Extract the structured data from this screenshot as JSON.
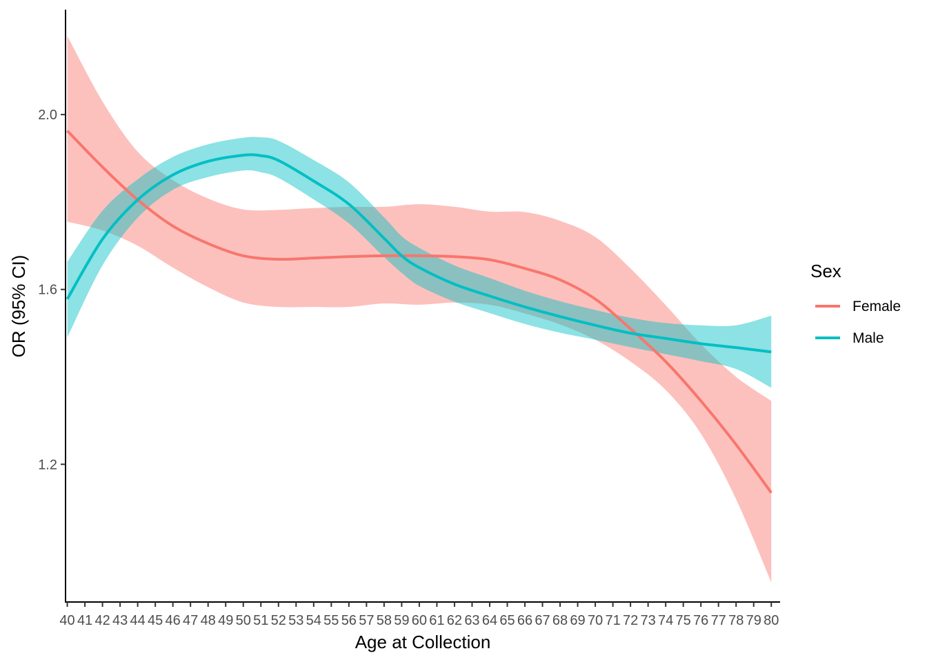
{
  "chart_data": {
    "type": "line",
    "title": "",
    "xlabel": "Age at Collection",
    "ylabel": "OR (95% CI)",
    "x": [
      40,
      41,
      42,
      43,
      44,
      45,
      46,
      47,
      48,
      49,
      50,
      51,
      52,
      53,
      54,
      55,
      56,
      57,
      58,
      59,
      60,
      61,
      62,
      63,
      64,
      65,
      66,
      67,
      68,
      69,
      70,
      71,
      72,
      73,
      74,
      75,
      76,
      77,
      78,
      79,
      80
    ],
    "xlim": [
      39.9,
      80.5
    ],
    "ylim": [
      0.885,
      2.24
    ],
    "yticks": [
      1.2,
      1.6,
      2.0
    ],
    "ytick_labels": [
      "1.2",
      "1.6",
      "2.0"
    ],
    "xtick_labels": [
      "40",
      "41",
      "42",
      "43",
      "44",
      "45",
      "46",
      "47",
      "48",
      "49",
      "50",
      "51",
      "52",
      "53",
      "54",
      "55",
      "56",
      "57",
      "58",
      "59",
      "60",
      "61",
      "62",
      "63",
      "64",
      "65",
      "66",
      "67",
      "68",
      "69",
      "70",
      "71",
      "72",
      "73",
      "74",
      "75",
      "76",
      "77",
      "78",
      "79",
      "80"
    ],
    "grid": false,
    "legend": {
      "title": "Sex",
      "position": "right"
    },
    "series": [
      {
        "name": "Female",
        "color": "#F8766D",
        "ribbon_color": "#F8766D",
        "x": [
          40,
          42,
          44,
          46,
          48,
          50,
          52,
          54,
          56,
          58,
          60,
          62,
          64,
          66,
          68,
          70,
          72,
          74,
          76,
          78,
          80
        ],
        "fit": [
          1.963,
          1.88,
          1.805,
          1.745,
          1.705,
          1.677,
          1.669,
          1.672,
          1.675,
          1.677,
          1.677,
          1.675,
          1.668,
          1.648,
          1.622,
          1.578,
          1.51,
          1.435,
          1.345,
          1.245,
          1.135
        ],
        "lower": [
          1.755,
          1.735,
          1.7,
          1.65,
          1.605,
          1.57,
          1.56,
          1.56,
          1.56,
          1.568,
          1.565,
          1.57,
          1.565,
          1.545,
          1.52,
          1.485,
          1.435,
          1.37,
          1.27,
          1.12,
          0.93
        ],
        "upper": [
          2.18,
          2.03,
          1.915,
          1.85,
          1.808,
          1.783,
          1.782,
          1.786,
          1.789,
          1.789,
          1.795,
          1.789,
          1.778,
          1.777,
          1.757,
          1.72,
          1.648,
          1.564,
          1.475,
          1.4,
          1.345
        ]
      },
      {
        "name": "Male",
        "color": "#00BFC4",
        "ribbon_color": "#00BFC4",
        "x": [
          40,
          42,
          44,
          46,
          48,
          50,
          51,
          52,
          54,
          56,
          58,
          59,
          60,
          62,
          64,
          66,
          68,
          70,
          72,
          74,
          76,
          78,
          80
        ],
        "fit": [
          1.578,
          1.715,
          1.805,
          1.862,
          1.893,
          1.907,
          1.906,
          1.895,
          1.848,
          1.795,
          1.717,
          1.677,
          1.65,
          1.612,
          1.585,
          1.56,
          1.538,
          1.518,
          1.5,
          1.488,
          1.476,
          1.467,
          1.457
        ],
        "lower": [
          1.49,
          1.655,
          1.764,
          1.828,
          1.857,
          1.872,
          1.868,
          1.855,
          1.806,
          1.751,
          1.674,
          1.638,
          1.608,
          1.572,
          1.546,
          1.521,
          1.501,
          1.485,
          1.468,
          1.452,
          1.436,
          1.418,
          1.375
        ],
        "upper": [
          1.663,
          1.78,
          1.852,
          1.903,
          1.932,
          1.947,
          1.948,
          1.94,
          1.896,
          1.845,
          1.765,
          1.722,
          1.695,
          1.655,
          1.626,
          1.597,
          1.573,
          1.553,
          1.535,
          1.523,
          1.518,
          1.518,
          1.54
        ]
      }
    ]
  }
}
